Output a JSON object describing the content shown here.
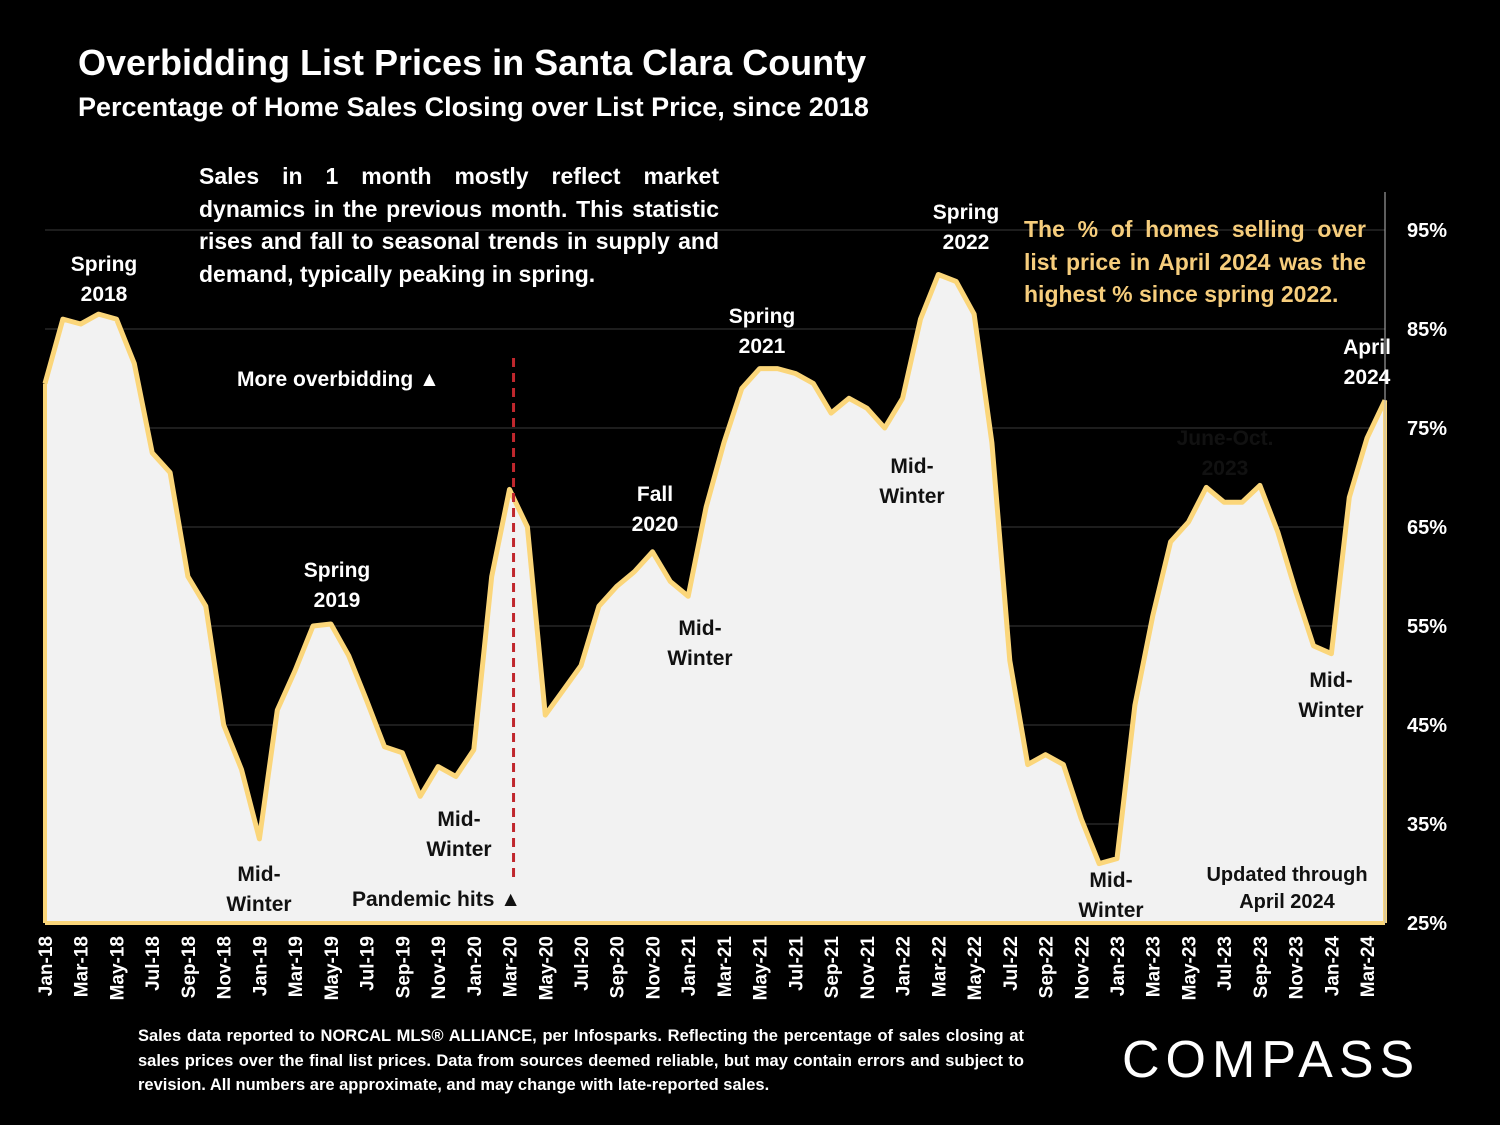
{
  "chart_data": {
    "type": "area",
    "title": "Overbidding List Prices in Santa Clara County",
    "subtitle": "Percentage of Home Sales Closing over List Price, since 2018",
    "ylim": [
      25,
      100
    ],
    "yticks": [
      25,
      35,
      45,
      55,
      65,
      75,
      85,
      95
    ],
    "ytick_labels": [
      "25%",
      "35%",
      "45%",
      "55%",
      "65%",
      "75%",
      "85%",
      "95%"
    ],
    "x_tick_labels": [
      "Jan-18",
      "Mar-18",
      "May-18",
      "Jul-18",
      "Sep-18",
      "Nov-18",
      "Jan-19",
      "Mar-19",
      "May-19",
      "Jul-19",
      "Sep-19",
      "Nov-19",
      "Jan-20",
      "Mar-20",
      "May-20",
      "Jul-20",
      "Sep-20",
      "Nov-20",
      "Jan-21",
      "Mar-21",
      "May-21",
      "Jul-21",
      "Sep-21",
      "Nov-21",
      "Jan-22",
      "Mar-22",
      "May-22",
      "Jul-22",
      "Sep-22",
      "Nov-22",
      "Jan-23",
      "Mar-23",
      "May-23",
      "Jul-23",
      "Sep-23",
      "Nov-23",
      "Jan-24",
      "Mar-24"
    ],
    "series": [
      {
        "values": [
          79.5,
          86.0,
          85.5,
          86.5,
          86.0,
          81.5,
          72.5,
          70.5,
          60.0,
          57.0,
          45.0,
          40.5,
          33.5,
          46.5,
          50.5,
          55.0,
          55.2,
          52.0,
          47.5,
          42.8,
          42.2,
          37.8,
          40.8,
          39.8,
          42.5,
          60.0,
          68.8,
          65.0,
          46.0,
          48.5,
          51.0,
          57.0,
          59.0,
          60.5,
          62.5,
          59.5,
          58.0,
          67.0,
          73.5,
          79.0,
          81.0,
          81.0,
          80.5,
          79.5,
          76.5,
          78.0,
          77.0,
          75.0,
          78.0,
          86.0,
          90.5,
          89.8,
          86.5,
          73.5,
          51.5,
          41.0,
          42.0,
          41.0,
          35.5,
          31.0,
          31.5,
          47.0,
          56.0,
          63.5,
          65.5,
          69.0,
          67.5,
          67.5,
          69.2,
          64.5,
          58.5,
          53.0,
          52.2,
          68.0,
          74.0,
          77.8
        ]
      }
    ],
    "event_line": {
      "index": 26,
      "label": "Pandemic hits ▲"
    },
    "annotations": [
      {
        "text": "Spring\n2018"
      },
      {
        "text": "Mid-\nWinter"
      },
      {
        "text": "Spring\n2019"
      },
      {
        "text": "Mid-\nWinter"
      },
      {
        "text": "Fall\n2020"
      },
      {
        "text": "Mid-\nWinter"
      },
      {
        "text": "Spring\n2021"
      },
      {
        "text": "Spring\n2022"
      },
      {
        "text": "Mid-\nWinter"
      },
      {
        "text": "Mid-\nWinter"
      },
      {
        "text": "June-Oct.\n2023"
      },
      {
        "text": "Mid-\nWinter"
      },
      {
        "text": "April\n2024"
      }
    ],
    "more_overbidding": "More overbidding ▲",
    "updated_note": "Updated through\nApril 2024",
    "colors": {
      "line": "#fbd67a",
      "fill": "#f2f2f2",
      "event": "#c0272d",
      "background": "#000000"
    }
  },
  "notes": {
    "left": "Sales in 1 month mostly reflect market dynamics in the previous month. This statistic rises and fall to seasonal trends in supply and demand, typically peaking in spring.",
    "right": "The % of homes selling over list price in April 2024 was the highest % since spring 2022."
  },
  "footnote": "Sales data reported to NORCAL MLS® ALLIANCE, per Infosparks. Reflecting the percentage of sales closing at sales prices over the final list prices. Data from sources deemed reliable, but may contain errors and subject to revision. All numbers are approximate, and may change with late-reported sales.",
  "logo": "COMPASS"
}
